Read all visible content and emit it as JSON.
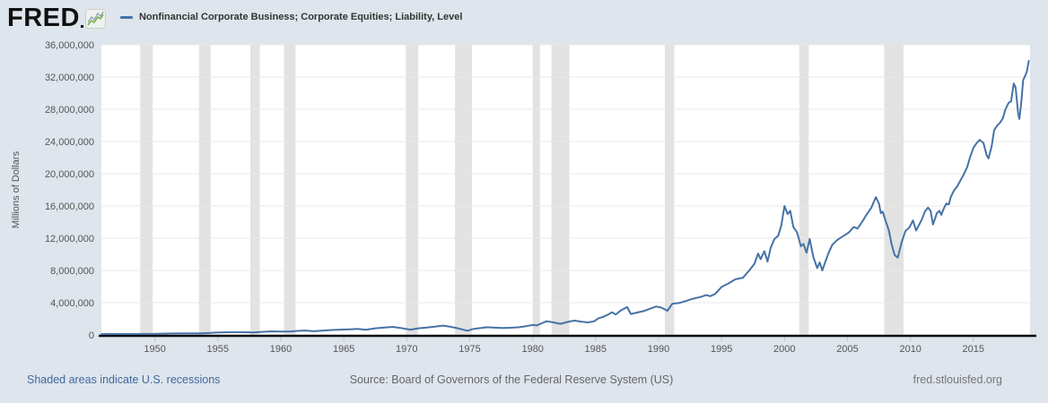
{
  "header": {
    "logo_text": "FRED",
    "series_title": "Nonfinancial Corporate Business; Corporate Equities; Liability, Level"
  },
  "y_axis": {
    "title": "Millions of Dollars"
  },
  "footer": {
    "recession_note": "Shaded areas indicate U.S. recessions",
    "source": "Source: Board of Governors of the Federal Reserve System (US)",
    "site": "fred.stlouisfed.org"
  },
  "colors": {
    "page_background": "#dee5ec",
    "plot_background": "#ffffff",
    "series_line": "#4572a7",
    "recession_band": "#e2e2e2",
    "gridline": "#e8e8e8",
    "axis_line": "#0b0b0b",
    "tick_label": "#555555",
    "title_text": "#333333",
    "link_blue": "#3f689f",
    "logo_icon_green": "#6faa3e",
    "logo_icon_gray": "#8ea6b2"
  },
  "chart_data": {
    "type": "line",
    "title": "Nonfinancial Corporate Business; Corporate Equities; Liability, Level",
    "xlabel": "",
    "ylabel": "Millions of Dollars",
    "legend_position": "top-left",
    "grid": true,
    "x_range": [
      1945.75,
      2019.5
    ],
    "ylim": [
      0,
      36000000
    ],
    "y_ticks": [
      0,
      4000000,
      8000000,
      12000000,
      16000000,
      20000000,
      24000000,
      28000000,
      32000000,
      36000000
    ],
    "x_ticks": [
      1950,
      1955,
      1960,
      1965,
      1970,
      1975,
      1980,
      1985,
      1990,
      1995,
      2000,
      2005,
      2010,
      2015
    ],
    "line_color": "#4572a7",
    "grid_color": "#e8e8e8",
    "recession_color": "#e2e2e2",
    "recessions": [
      [
        1948.83,
        1949.83
      ],
      [
        1953.5,
        1954.42
      ],
      [
        1957.58,
        1958.33
      ],
      [
        1960.25,
        1961.17
      ],
      [
        1969.92,
        1970.92
      ],
      [
        1973.83,
        1975.17
      ],
      [
        1980.0,
        1980.58
      ],
      [
        1981.5,
        1982.92
      ],
      [
        1990.5,
        1991.25
      ],
      [
        2001.17,
        2001.92
      ],
      [
        2007.92,
        2009.45
      ]
    ],
    "series": [
      {
        "name": "Nonfinancial Corporate Business; Corporate Equities; Liability, Level",
        "units": "Millions of Dollars",
        "points": [
          [
            1945.75,
            100000
          ],
          [
            1946.5,
            120000
          ],
          [
            1947.25,
            110000
          ],
          [
            1948.0,
            115000
          ],
          [
            1949.0,
            118000
          ],
          [
            1949.75,
            125000
          ],
          [
            1950.5,
            155000
          ],
          [
            1951.25,
            180000
          ],
          [
            1952.0,
            195000
          ],
          [
            1952.75,
            205000
          ],
          [
            1953.5,
            190000
          ],
          [
            1954.25,
            230000
          ],
          [
            1955.0,
            300000
          ],
          [
            1955.75,
            330000
          ],
          [
            1956.5,
            350000
          ],
          [
            1957.25,
            330000
          ],
          [
            1957.75,
            300000
          ],
          [
            1958.5,
            380000
          ],
          [
            1959.25,
            440000
          ],
          [
            1960.0,
            420000
          ],
          [
            1960.75,
            430000
          ],
          [
            1961.5,
            510000
          ],
          [
            1962.0,
            540000
          ],
          [
            1962.6,
            450000
          ],
          [
            1963.25,
            530000
          ],
          [
            1964.0,
            610000
          ],
          [
            1964.75,
            660000
          ],
          [
            1965.5,
            700000
          ],
          [
            1966.1,
            760000
          ],
          [
            1966.75,
            640000
          ],
          [
            1967.5,
            820000
          ],
          [
            1968.2,
            920000
          ],
          [
            1968.9,
            1000000
          ],
          [
            1969.5,
            870000
          ],
          [
            1970.3,
            660000
          ],
          [
            1970.9,
            820000
          ],
          [
            1971.5,
            900000
          ],
          [
            1972.2,
            1020000
          ],
          [
            1972.9,
            1150000
          ],
          [
            1973.4,
            1030000
          ],
          [
            1973.9,
            880000
          ],
          [
            1974.4,
            690000
          ],
          [
            1974.8,
            520000
          ],
          [
            1975.3,
            750000
          ],
          [
            1975.9,
            870000
          ],
          [
            1976.4,
            950000
          ],
          [
            1977.0,
            900000
          ],
          [
            1977.6,
            860000
          ],
          [
            1978.2,
            890000
          ],
          [
            1978.9,
            960000
          ],
          [
            1979.5,
            1090000
          ],
          [
            1980.0,
            1250000
          ],
          [
            1980.3,
            1180000
          ],
          [
            1980.8,
            1500000
          ],
          [
            1981.1,
            1700000
          ],
          [
            1981.7,
            1550000
          ],
          [
            1982.2,
            1380000
          ],
          [
            1982.8,
            1620000
          ],
          [
            1983.3,
            1780000
          ],
          [
            1983.9,
            1640000
          ],
          [
            1984.4,
            1560000
          ],
          [
            1984.9,
            1700000
          ],
          [
            1985.2,
            2050000
          ],
          [
            1985.6,
            2250000
          ],
          [
            1986.0,
            2550000
          ],
          [
            1986.3,
            2800000
          ],
          [
            1986.6,
            2550000
          ],
          [
            1987.0,
            3050000
          ],
          [
            1987.5,
            3450000
          ],
          [
            1987.8,
            2600000
          ],
          [
            1988.3,
            2780000
          ],
          [
            1988.8,
            2950000
          ],
          [
            1989.3,
            3250000
          ],
          [
            1989.8,
            3520000
          ],
          [
            1990.2,
            3400000
          ],
          [
            1990.7,
            3000000
          ],
          [
            1991.1,
            3880000
          ],
          [
            1991.6,
            3950000
          ],
          [
            1992.1,
            4180000
          ],
          [
            1992.7,
            4480000
          ],
          [
            1993.3,
            4700000
          ],
          [
            1993.8,
            4950000
          ],
          [
            1994.1,
            4800000
          ],
          [
            1994.5,
            5100000
          ],
          [
            1995.0,
            5950000
          ],
          [
            1995.5,
            6350000
          ],
          [
            1996.1,
            6900000
          ],
          [
            1996.7,
            7100000
          ],
          [
            1997.2,
            8000000
          ],
          [
            1997.6,
            8800000
          ],
          [
            1997.9,
            10100000
          ],
          [
            1998.1,
            9400000
          ],
          [
            1998.4,
            10400000
          ],
          [
            1998.65,
            9100000
          ],
          [
            1998.9,
            10800000
          ],
          [
            1999.2,
            11900000
          ],
          [
            1999.5,
            12300000
          ],
          [
            1999.75,
            13600000
          ],
          [
            2000.0,
            16000000
          ],
          [
            2000.25,
            15000000
          ],
          [
            2000.45,
            15400000
          ],
          [
            2000.7,
            13400000
          ],
          [
            2001.0,
            12700000
          ],
          [
            2001.3,
            11000000
          ],
          [
            2001.5,
            11300000
          ],
          [
            2001.75,
            10200000
          ],
          [
            2002.0,
            11900000
          ],
          [
            2002.3,
            9600000
          ],
          [
            2002.6,
            8300000
          ],
          [
            2002.8,
            9000000
          ],
          [
            2003.0,
            8000000
          ],
          [
            2003.5,
            10200000
          ],
          [
            2003.8,
            11200000
          ],
          [
            2004.2,
            11800000
          ],
          [
            2004.7,
            12300000
          ],
          [
            2005.1,
            12700000
          ],
          [
            2005.5,
            13400000
          ],
          [
            2005.8,
            13200000
          ],
          [
            2006.2,
            14100000
          ],
          [
            2006.5,
            14900000
          ],
          [
            2006.9,
            15800000
          ],
          [
            2007.25,
            17100000
          ],
          [
            2007.5,
            16300000
          ],
          [
            2007.65,
            15100000
          ],
          [
            2007.8,
            15300000
          ],
          [
            2008.0,
            14300000
          ],
          [
            2008.3,
            12900000
          ],
          [
            2008.5,
            11300000
          ],
          [
            2008.75,
            9900000
          ],
          [
            2009.0,
            9600000
          ],
          [
            2009.3,
            11500000
          ],
          [
            2009.6,
            12900000
          ],
          [
            2009.9,
            13300000
          ],
          [
            2010.2,
            14200000
          ],
          [
            2010.45,
            12950000
          ],
          [
            2010.9,
            14300000
          ],
          [
            2011.15,
            15300000
          ],
          [
            2011.4,
            15800000
          ],
          [
            2011.6,
            15400000
          ],
          [
            2011.8,
            13700000
          ],
          [
            2012.1,
            15100000
          ],
          [
            2012.3,
            15400000
          ],
          [
            2012.45,
            14900000
          ],
          [
            2012.65,
            15700000
          ],
          [
            2012.85,
            16300000
          ],
          [
            2013.05,
            16200000
          ],
          [
            2013.2,
            17100000
          ],
          [
            2013.45,
            17900000
          ],
          [
            2013.7,
            18400000
          ],
          [
            2013.95,
            19100000
          ],
          [
            2014.2,
            19800000
          ],
          [
            2014.5,
            20800000
          ],
          [
            2014.75,
            22100000
          ],
          [
            2015.0,
            23200000
          ],
          [
            2015.25,
            23800000
          ],
          [
            2015.5,
            24200000
          ],
          [
            2015.8,
            23800000
          ],
          [
            2016.05,
            22300000
          ],
          [
            2016.2,
            21900000
          ],
          [
            2016.45,
            23400000
          ],
          [
            2016.65,
            25400000
          ],
          [
            2016.9,
            26000000
          ],
          [
            2017.1,
            26300000
          ],
          [
            2017.35,
            26900000
          ],
          [
            2017.55,
            28000000
          ],
          [
            2017.8,
            28800000
          ],
          [
            2018.0,
            29000000
          ],
          [
            2018.2,
            31200000
          ],
          [
            2018.35,
            30700000
          ],
          [
            2018.55,
            27500000
          ],
          [
            2018.65,
            26800000
          ],
          [
            2018.8,
            28800000
          ],
          [
            2018.95,
            31600000
          ],
          [
            2019.1,
            32100000
          ],
          [
            2019.25,
            32700000
          ],
          [
            2019.4,
            34000000
          ]
        ]
      }
    ]
  }
}
